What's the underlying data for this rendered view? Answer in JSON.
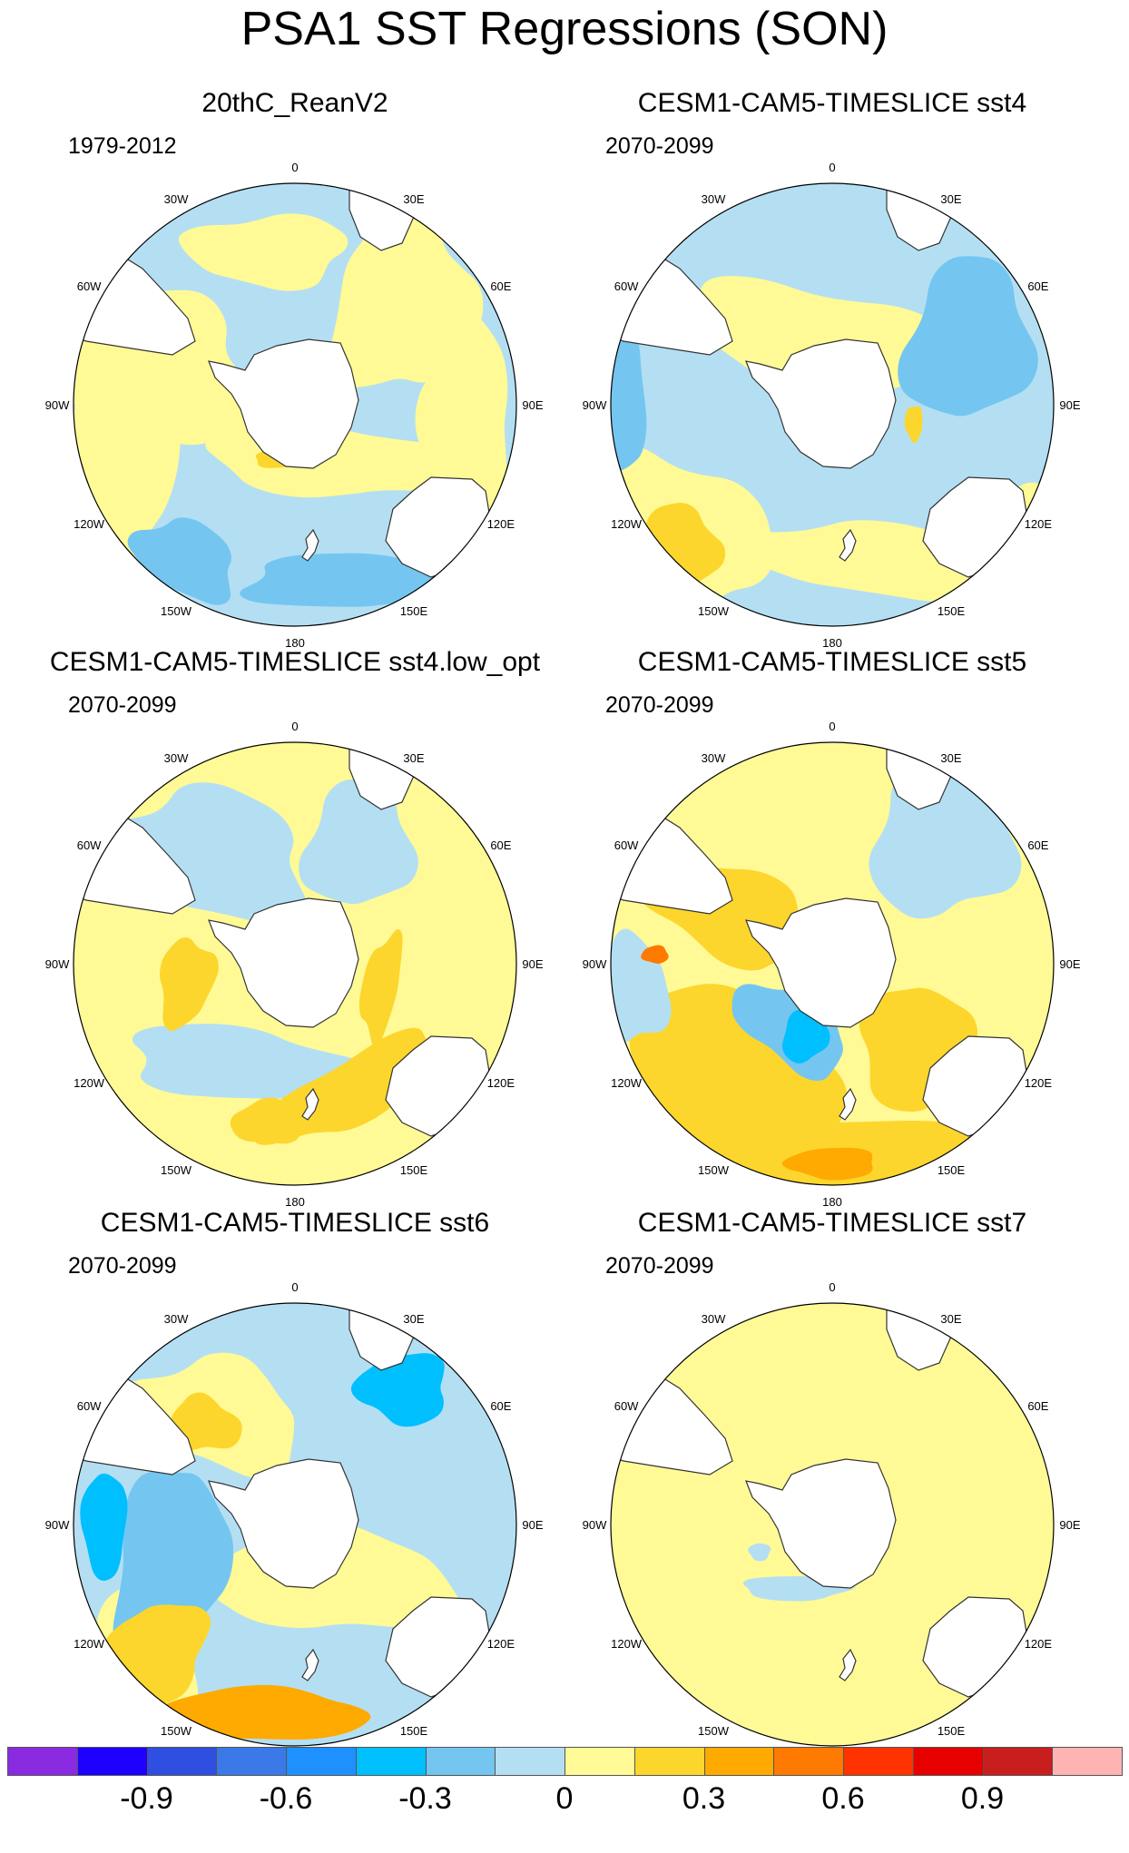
{
  "figure": {
    "title": "PSA1 SST Regressions (SON)"
  },
  "panels": [
    {
      "title": "20thC_ReanV2",
      "period": "1979-2012",
      "pattern": "mixed_weak"
    },
    {
      "title": "CESM1-CAM5-TIMESLICE sst4",
      "period": "2070-2099",
      "pattern": "mostly_negative"
    },
    {
      "title": "CESM1-CAM5-TIMESLICE sst4.low_opt",
      "period": "2070-2099",
      "pattern": "mostly_positive"
    },
    {
      "title": "CESM1-CAM5-TIMESLICE sst5",
      "period": "2070-2099",
      "pattern": "dipole_strong"
    },
    {
      "title": "CESM1-CAM5-TIMESLICE sst6",
      "period": "2070-2099",
      "pattern": "dipole_negative"
    },
    {
      "title": "CESM1-CAM5-TIMESLICE sst7",
      "period": "2070-2099",
      "pattern": "uniform_positive"
    }
  ],
  "map": {
    "projection": "south-polar stereographic",
    "longitude_labels": [
      "0",
      "30E",
      "60E",
      "90E",
      "120E",
      "150E",
      "180",
      "150W",
      "120W",
      "90W",
      "60W",
      "30W"
    ]
  },
  "colorbar": {
    "colors": [
      "#8a2be2",
      "#1e00ff",
      "#2f4fe0",
      "#3b78e8",
      "#1e90ff",
      "#00bfff",
      "#74c6f0",
      "#b4dff3",
      "#fffa96",
      "#fcd62d",
      "#ffaa00",
      "#ff7a00",
      "#ff3300",
      "#e60000",
      "#c81e1e",
      "#ffb4b4"
    ],
    "labels": [
      "-0.9",
      "-0.6",
      "-0.3",
      "0",
      "0.3",
      "0.6",
      "0.9"
    ],
    "label_boundary_index": [
      2,
      4,
      6,
      8,
      10,
      12,
      14
    ]
  }
}
